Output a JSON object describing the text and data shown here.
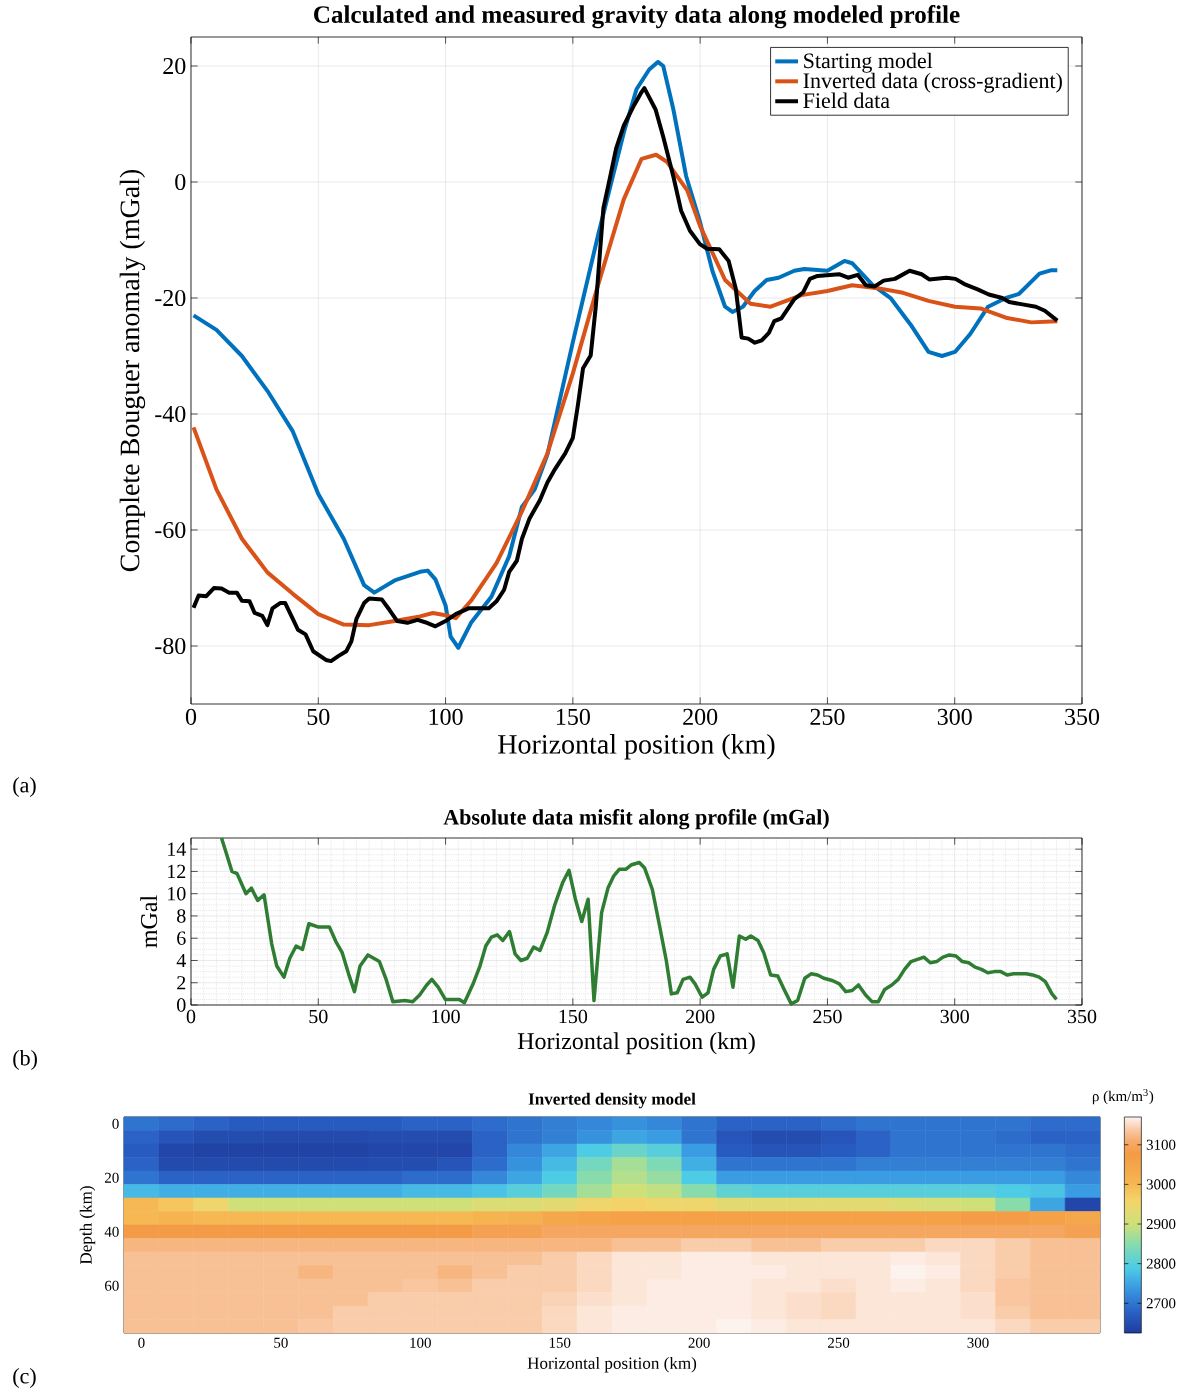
{
  "chart_data": [
    {
      "type": "line",
      "title": "Calculated and measured gravity data along modeled profile",
      "xlabel": "Horizontal position (km)",
      "ylabel": "Complete Bouguer anomaly (mGal)",
      "xlim": [
        0,
        350
      ],
      "ylim": [
        -90,
        25
      ],
      "xticks": [
        0,
        50,
        100,
        150,
        200,
        250,
        300,
        350
      ],
      "yticks": [
        -80,
        -60,
        -40,
        -20,
        0,
        20
      ],
      "grid": true,
      "legend": "top right",
      "annotations": [
        "(a)"
      ],
      "series": [
        {
          "name": "Starting model",
          "color": "#0072bd",
          "x": [
            1,
            10,
            20,
            30,
            40,
            50,
            60,
            68,
            72,
            80,
            90,
            93,
            96,
            100,
            102,
            105,
            110,
            118,
            125,
            130,
            135,
            140,
            150,
            160,
            170,
            175,
            180,
            183.4,
            185.5,
            189.5,
            194.5,
            199.9,
            204.8,
            209.8,
            212.7,
            216.8,
            221.4,
            226.1,
            230.8,
            237,
            240.9,
            250,
            256.7,
            259.7,
            267.6,
            274.8,
            282.7,
            289.7,
            295,
            300.1,
            306.1,
            313.1,
            320.1,
            325.2,
            333.3,
            338,
            340.3
          ],
          "values": [
            -23,
            -25.5,
            -30,
            -36,
            -43,
            -53.8,
            -61.5,
            -69.5,
            -70.8,
            -68.7,
            -67.2,
            -67,
            -68.5,
            -73,
            -78.4,
            -80.3,
            -76,
            -71.5,
            -64.5,
            -56,
            -53,
            -47,
            -27.6,
            -9,
            8.5,
            16,
            19.4,
            20.7,
            20,
            12.5,
            1,
            -6.8,
            -15.3,
            -21.5,
            -22.4,
            -21.5,
            -18.8,
            -16.9,
            -16.5,
            -15.3,
            -15,
            -15.3,
            -13.6,
            -14,
            -17.7,
            -20,
            -24.6,
            -29.3,
            -30,
            -29.3,
            -26.2,
            -21.5,
            -20,
            -19.3,
            -15.8,
            -15.2,
            -15.2
          ]
        },
        {
          "name": "Inverted data (cross-gradient)",
          "color": "#d95319",
          "x": [
            1,
            10,
            20,
            30,
            40,
            50,
            60,
            70,
            80,
            90,
            95,
            100,
            104,
            110,
            120,
            130,
            140,
            150,
            160,
            170,
            177,
            182.7,
            186.9,
            195,
            200,
            209.8,
            219.8,
            227.7,
            239.8,
            250,
            259.7,
            269.7,
            279.7,
            289.7,
            300.1,
            310.1,
            320.1,
            330.1,
            340.3
          ],
          "values": [
            -42.3,
            -53,
            -61.5,
            -67.3,
            -71,
            -74.5,
            -76.3,
            -76.4,
            -75.7,
            -74.9,
            -74.3,
            -74.7,
            -75.2,
            -72.2,
            -65.7,
            -56.8,
            -46.8,
            -33,
            -17.6,
            -3,
            4,
            4.7,
            3.5,
            -1.5,
            -7.6,
            -16.9,
            -21,
            -21.5,
            -19.5,
            -18.8,
            -17.8,
            -18.3,
            -19.1,
            -20.5,
            -21.5,
            -21.8,
            -23.4,
            -24.2,
            -24
          ]
        },
        {
          "name": "Field data",
          "color": "#000000",
          "x": [
            1,
            3,
            6,
            9,
            12,
            15,
            18,
            20,
            23,
            25,
            28,
            30,
            32,
            35,
            37,
            40,
            42,
            45,
            48,
            50,
            53,
            55,
            58,
            61,
            63,
            65,
            68,
            70,
            75,
            78,
            81,
            85,
            89,
            92,
            96,
            100,
            104,
            109,
            113,
            117,
            120,
            123,
            125,
            128,
            130,
            133,
            137,
            140,
            143,
            147,
            150,
            152,
            154,
            157,
            159,
            162,
            165,
            167,
            170,
            174,
            177,
            178.1,
            182.5,
            185.5,
            189.5,
            192.5,
            196,
            199.9,
            202.7,
            207.5,
            211.2,
            214,
            216.3,
            218.9,
            221.5,
            224.2,
            227,
            229.1,
            231.9,
            237,
            240.5,
            243.1,
            246.1,
            254.6,
            258.1,
            261.9,
            265.1,
            268.6,
            272.1,
            276.5,
            282.3,
            287,
            290,
            296.7,
            300.3,
            303.8,
            309,
            313.4,
            318.7,
            321.4,
            326.6,
            331.9,
            335.4,
            340.3
          ],
          "values": [
            -73.4,
            -71.3,
            -71.4,
            -70,
            -70.1,
            -70.8,
            -70.8,
            -72.2,
            -72.3,
            -74.3,
            -74.8,
            -76.4,
            -73.5,
            -72.6,
            -72.6,
            -75.3,
            -77.2,
            -78,
            -80.9,
            -81.5,
            -82.4,
            -82.6,
            -81.7,
            -80.9,
            -79.2,
            -75.3,
            -72.6,
            -71.8,
            -72,
            -73.8,
            -75.7,
            -76,
            -75.5,
            -75.9,
            -76.6,
            -75.7,
            -74.5,
            -73.5,
            -73.5,
            -73.5,
            -72.3,
            -70.3,
            -67.2,
            -65.3,
            -61.5,
            -58,
            -54.9,
            -51.8,
            -49.5,
            -46.8,
            -44.1,
            -38.4,
            -32.1,
            -29.9,
            -21.5,
            -4.5,
            1.6,
            5.8,
            9.7,
            13.2,
            15.5,
            16.2,
            12.5,
            7.8,
            0.9,
            -4.9,
            -8.4,
            -10.7,
            -11.5,
            -11.6,
            -13.6,
            -18.4,
            -26.8,
            -27,
            -27.7,
            -27.3,
            -26,
            -24,
            -23.5,
            -20.2,
            -19,
            -16.7,
            -16.2,
            -15.9,
            -16.5,
            -16,
            -17.8,
            -18,
            -17,
            -16.7,
            -15.3,
            -15.9,
            -16.8,
            -16.5,
            -16.7,
            -17.6,
            -18.5,
            -19.4,
            -20,
            -20.7,
            -21.1,
            -21.5,
            -22.2,
            -23.9
          ]
        }
      ]
    },
    {
      "type": "line",
      "title": "Absolute data misfit along profile (mGal)",
      "xlabel": "Horizontal position (km)",
      "ylabel": "mGal",
      "xlim": [
        0,
        350
      ],
      "ylim": [
        0,
        15
      ],
      "xticks": [
        0,
        50,
        100,
        150,
        200,
        250,
        300,
        350
      ],
      "yticks": [
        0,
        2,
        4,
        6,
        8,
        10,
        12,
        14
      ],
      "grid": true,
      "annotations": [
        "(b)"
      ],
      "series": [
        {
          "color": "#2e7d32",
          "x": [
            12,
            16.1,
            18.1,
            21.6,
            23.7,
            26.2,
            28.7,
            31.7,
            33.7,
            36.5,
            38.8,
            41.3,
            43.8,
            46.3,
            50.1,
            54.4,
            56.9,
            59.4,
            61.9,
            64.2,
            66.4,
            69.5,
            74,
            76.5,
            79.3,
            84,
            87.1,
            89.8,
            92.6,
            94.6,
            97.1,
            99.9,
            105.4,
            107.4,
            111,
            113.5,
            115.8,
            118,
            120.3,
            122.5,
            125.1,
            127.3,
            129.6,
            132.1,
            134.6,
            137.1,
            139.9,
            142.9,
            146,
            148.5,
            151,
            153.5,
            156,
            158.3,
            161.3,
            163.8,
            166.1,
            168.3,
            170.9,
            173.1,
            176.1,
            178.2,
            181.2,
            183.9,
            186.7,
            188.7,
            191,
            193.3,
            196,
            198,
            200.8,
            203.1,
            205.3,
            207.9,
            210.6,
            212.9,
            215.4,
            217.9,
            219.9,
            222.7,
            225,
            227.7,
            230.5,
            233,
            235.8,
            238.3,
            241.1,
            243.6,
            246.1,
            248.6,
            251.9,
            254.7,
            257.2,
            259.7,
            262.2,
            265,
            267.5,
            270,
            272.5,
            275.3,
            277.8,
            280.3,
            282.8,
            285.4,
            287.9,
            290.4,
            292.9,
            295.4,
            297.9,
            300.5,
            303,
            305.5,
            308,
            310.5,
            313,
            315.6,
            318.1,
            320.6,
            323.1,
            325.6,
            328.1,
            330.6,
            333.2,
            335.6,
            338.2,
            340
          ],
          "values": [
            15,
            12,
            11.8,
            10,
            10.5,
            9.4,
            9.9,
            5.5,
            3.5,
            2.5,
            4.2,
            5.3,
            5,
            7.3,
            7,
            7,
            5.7,
            4.7,
            2.8,
            1.2,
            3.5,
            4.5,
            3.9,
            2.4,
            0.3,
            0.4,
            0.3,
            0.9,
            1.8,
            2.3,
            1.6,
            0.5,
            0.5,
            0.2,
            2,
            3.5,
            5.3,
            6.1,
            6.3,
            5.8,
            6.6,
            4.6,
            4,
            4.2,
            5.2,
            4.9,
            6.5,
            9,
            11,
            12.1,
            9.5,
            7.5,
            9.5,
            0.4,
            8.3,
            10.5,
            11.6,
            12.2,
            12.2,
            12.6,
            12.8,
            12.3,
            10.4,
            7.3,
            4,
            1,
            1.1,
            2.3,
            2.5,
            1.9,
            0.7,
            1.1,
            3.2,
            4.4,
            4.6,
            1.6,
            6.2,
            5.9,
            6.2,
            5.8,
            4.7,
            2.7,
            2.6,
            1.4,
            0.1,
            0.4,
            2.4,
            2.8,
            2.7,
            2.4,
            2.2,
            1.9,
            1.2,
            1.3,
            1.8,
            0.9,
            0.3,
            0.3,
            1.4,
            1.8,
            2.3,
            3.2,
            3.9,
            4.1,
            4.3,
            3.8,
            3.9,
            4.3,
            4.5,
            4.4,
            3.9,
            3.8,
            3.4,
            3.2,
            2.9,
            3,
            3,
            2.7,
            2.8,
            2.8,
            2.8,
            2.7,
            2.5,
            2.1,
            1,
            0.5
          ]
        }
      ]
    },
    {
      "type": "heatmap",
      "title": "Inverted density model",
      "xlabel": "Horizontal position (km)",
      "ylabel": "Depth (km)",
      "clabel": "ρ (km/m$^{3}$)",
      "clim": [
        2625,
        3170
      ],
      "cticks": [
        2700,
        2800,
        2900,
        3000,
        3100
      ],
      "annotations": [
        "(c)"
      ],
      "categories": [
        "0",
        null,
        null,
        null,
        "50",
        null,
        null,
        null,
        "100",
        null,
        null,
        null,
        "150",
        null,
        null,
        null,
        "200",
        null,
        null,
        null,
        "250",
        null,
        null,
        null,
        "300",
        null,
        null,
        null
      ],
      "y_categories": [
        "0",
        null,
        null,
        null,
        "20",
        null,
        null,
        null,
        "40",
        null,
        null,
        null,
        "60",
        null,
        null,
        null
      ],
      "cells": [
        [
          2700,
          2690,
          2680,
          2670,
          2670,
          2670,
          2670,
          2670,
          2680,
          2680,
          2690,
          2700,
          2710,
          2720,
          2730,
          2720,
          2700,
          2680,
          2680,
          2680,
          2690,
          2700,
          2700,
          2700,
          2700,
          2700,
          2690,
          2690
        ],
        [
          2680,
          2660,
          2650,
          2650,
          2645,
          2645,
          2645,
          2650,
          2650,
          2650,
          2680,
          2700,
          2710,
          2730,
          2750,
          2740,
          2700,
          2660,
          2650,
          2650,
          2660,
          2680,
          2700,
          2700,
          2700,
          2690,
          2680,
          2680
        ],
        [
          2670,
          2640,
          2635,
          2635,
          2635,
          2635,
          2635,
          2640,
          2640,
          2640,
          2680,
          2720,
          2750,
          2790,
          2820,
          2800,
          2740,
          2670,
          2660,
          2660,
          2670,
          2680,
          2700,
          2700,
          2700,
          2700,
          2700,
          2690
        ],
        [
          2680,
          2645,
          2645,
          2645,
          2645,
          2645,
          2645,
          2650,
          2650,
          2660,
          2690,
          2730,
          2770,
          2830,
          2870,
          2840,
          2760,
          2700,
          2700,
          2700,
          2700,
          2710,
          2710,
          2710,
          2710,
          2710,
          2710,
          2700
        ],
        [
          2700,
          2680,
          2680,
          2680,
          2680,
          2680,
          2680,
          2680,
          2690,
          2690,
          2720,
          2750,
          2790,
          2850,
          2880,
          2860,
          2790,
          2740,
          2740,
          2740,
          2740,
          2740,
          2740,
          2740,
          2740,
          2740,
          2740,
          2720
        ],
        [
          2770,
          2760,
          2760,
          2760,
          2760,
          2760,
          2760,
          2760,
          2770,
          2770,
          2780,
          2800,
          2830,
          2870,
          2900,
          2890,
          2850,
          2810,
          2800,
          2800,
          2800,
          2800,
          2800,
          2800,
          2800,
          2790,
          2780,
          2740
        ],
        [
          3000,
          2980,
          2950,
          2900,
          2900,
          2900,
          2900,
          2900,
          2900,
          2900,
          2920,
          2920,
          2930,
          2950,
          2960,
          2950,
          2950,
          2930,
          2930,
          2930,
          2930,
          2930,
          2920,
          2910,
          2900,
          2850,
          2750,
          2640
        ],
        [
          3000,
          3010,
          3000,
          3000,
          3000,
          3000,
          3000,
          3000,
          3000,
          3000,
          3010,
          3020,
          3040,
          3050,
          3060,
          3060,
          3060,
          3060,
          3060,
          3060,
          3060,
          3060,
          3060,
          3060,
          3070,
          3070,
          3060,
          3040
        ],
        [
          3080,
          3080,
          3080,
          3080,
          3080,
          3080,
          3080,
          3080,
          3080,
          3080,
          3090,
          3090,
          3100,
          3100,
          3100,
          3100,
          3100,
          3100,
          3100,
          3100,
          3100,
          3100,
          3100,
          3100,
          3100,
          3100,
          3100,
          3090
        ],
        [
          3120,
          3120,
          3120,
          3120,
          3120,
          3120,
          3120,
          3120,
          3120,
          3120,
          3120,
          3120,
          3120,
          3120,
          3130,
          3130,
          3140,
          3140,
          3130,
          3130,
          3140,
          3140,
          3140,
          3150,
          3150,
          3140,
          3130,
          3130
        ],
        [
          3130,
          3130,
          3130,
          3130,
          3130,
          3130,
          3130,
          3130,
          3130,
          3130,
          3130,
          3130,
          3140,
          3150,
          3160,
          3160,
          3165,
          3165,
          3160,
          3160,
          3160,
          3160,
          3165,
          3160,
          3150,
          3140,
          3130,
          3130
        ],
        [
          3130,
          3130,
          3130,
          3130,
          3130,
          3120,
          3130,
          3130,
          3130,
          3120,
          3130,
          3140,
          3140,
          3150,
          3160,
          3160,
          3165,
          3165,
          3165,
          3160,
          3160,
          3160,
          3170,
          3165,
          3150,
          3140,
          3130,
          3130
        ],
        [
          3130,
          3130,
          3130,
          3130,
          3130,
          3130,
          3130,
          3130,
          3135,
          3130,
          3140,
          3140,
          3140,
          3150,
          3160,
          3165,
          3165,
          3165,
          3160,
          3160,
          3155,
          3160,
          3165,
          3160,
          3150,
          3135,
          3130,
          3130
        ],
        [
          3130,
          3130,
          3130,
          3130,
          3130,
          3130,
          3130,
          3140,
          3140,
          3140,
          3140,
          3140,
          3145,
          3155,
          3160,
          3165,
          3165,
          3165,
          3160,
          3155,
          3150,
          3160,
          3160,
          3160,
          3155,
          3135,
          3130,
          3130
        ],
        [
          3130,
          3130,
          3130,
          3130,
          3130,
          3130,
          3140,
          3140,
          3140,
          3140,
          3140,
          3140,
          3150,
          3160,
          3165,
          3165,
          3165,
          3165,
          3160,
          3155,
          3150,
          3160,
          3160,
          3160,
          3155,
          3140,
          3130,
          3130
        ],
        [
          3130,
          3130,
          3130,
          3130,
          3130,
          3135,
          3140,
          3140,
          3140,
          3140,
          3140,
          3140,
          3150,
          3160,
          3165,
          3165,
          3165,
          3170,
          3165,
          3160,
          3160,
          3160,
          3160,
          3160,
          3160,
          3150,
          3140,
          3140
        ]
      ]
    }
  ]
}
